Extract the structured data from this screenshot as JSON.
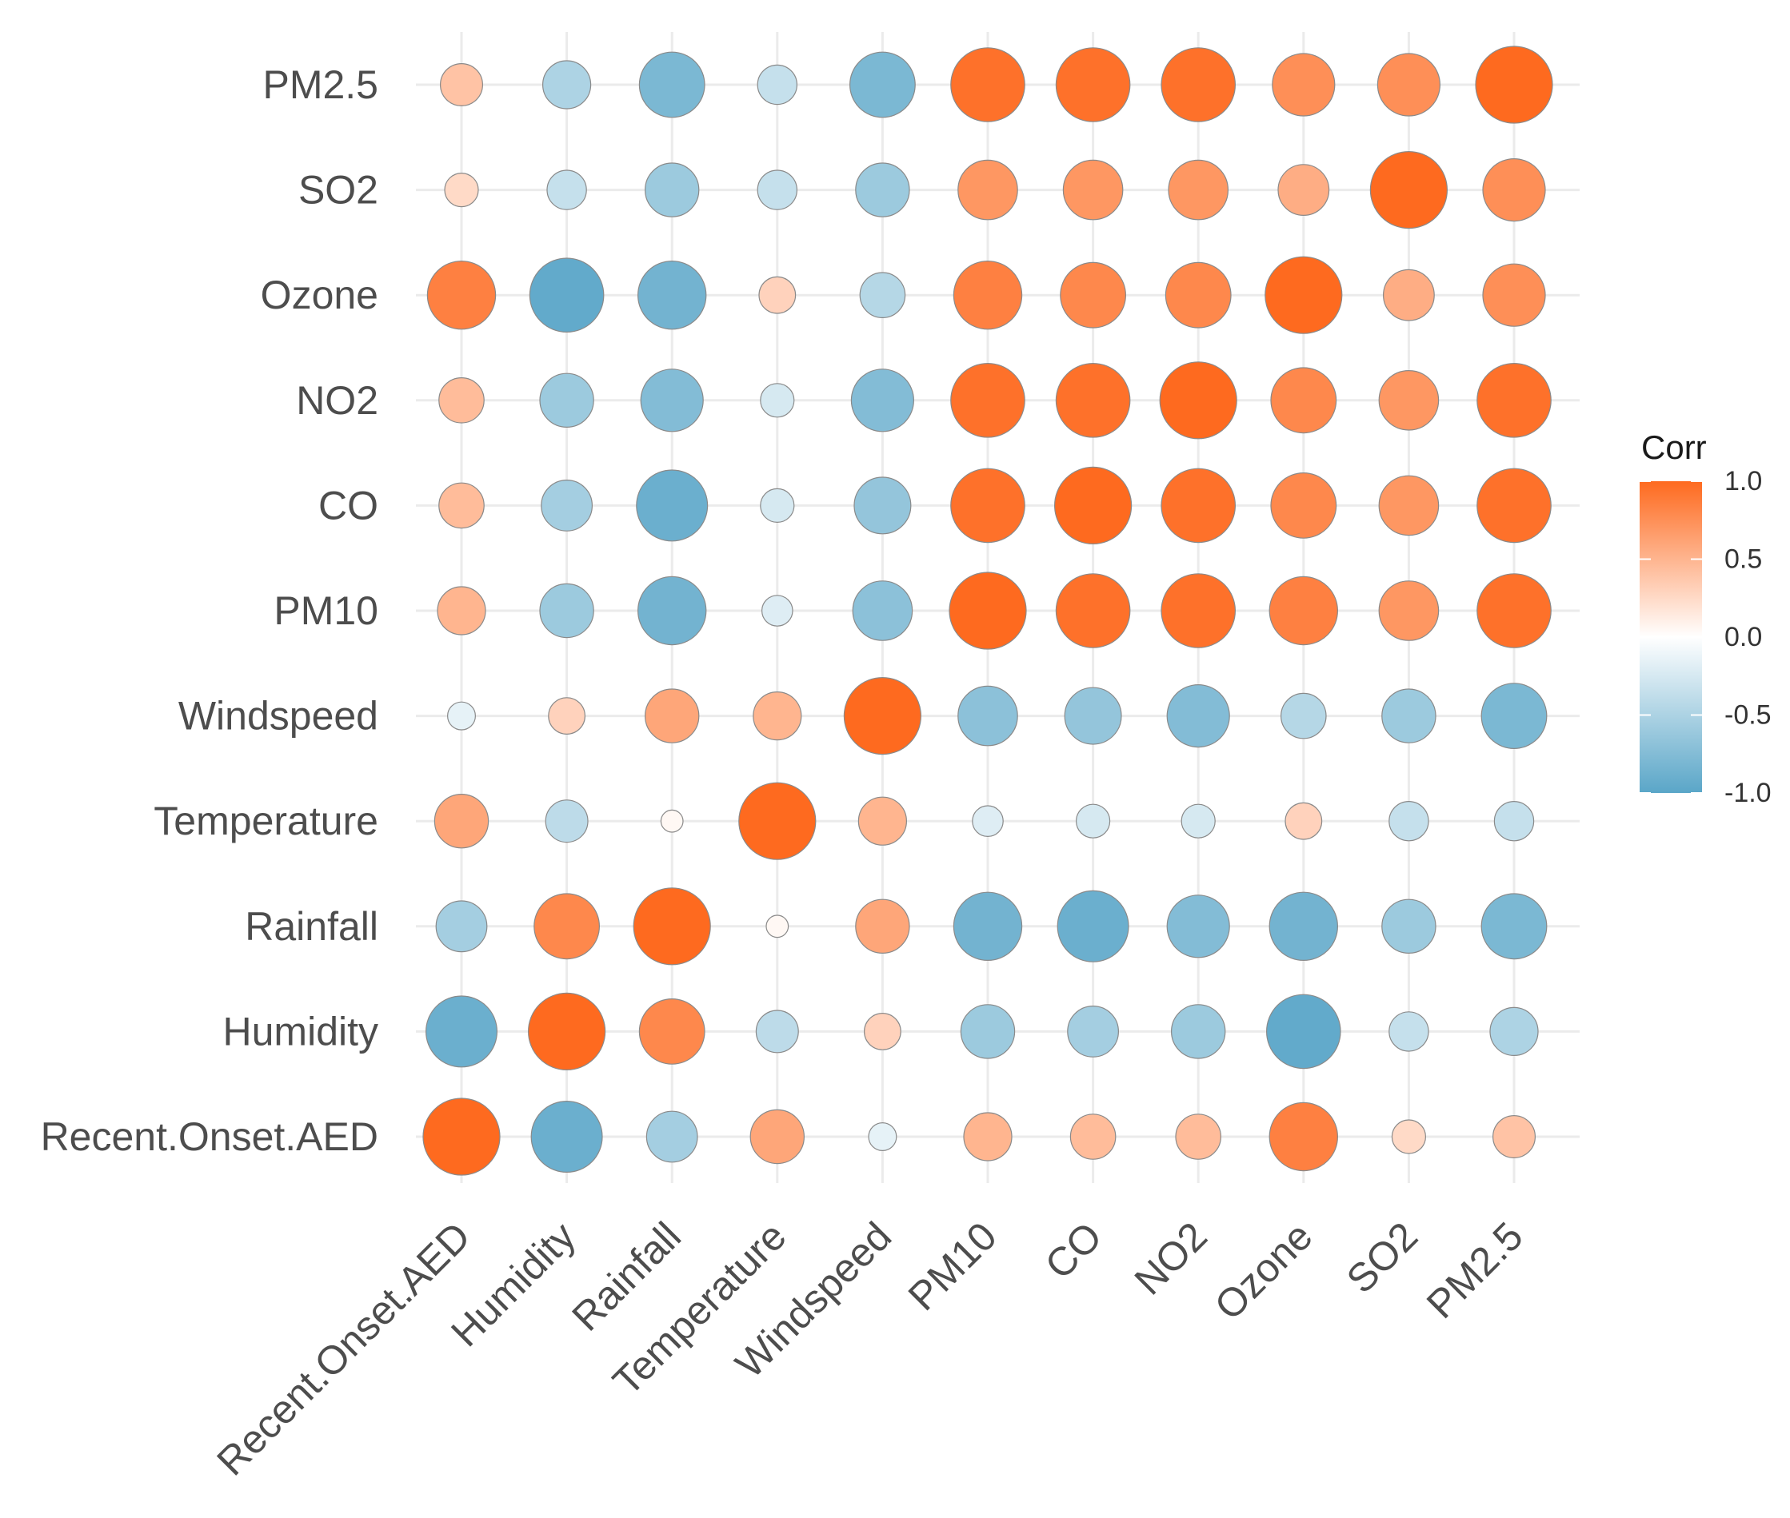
{
  "chart_data": {
    "type": "heatmap",
    "subtype": "correlation-circle-matrix",
    "variables": [
      "Recent.Onset.AED",
      "Humidity",
      "Rainfall",
      "Temperature",
      "Windspeed",
      "PM10",
      "CO",
      "NO2",
      "Ozone",
      "SO2",
      "PM2.5"
    ],
    "x_categories": [
      "Recent.Onset.AED",
      "Humidity",
      "Rainfall",
      "Temperature",
      "Windspeed",
      "PM10",
      "CO",
      "NO2",
      "Ozone",
      "SO2",
      "PM2.5"
    ],
    "y_categories_bottom_to_top": [
      "Recent.Onset.AED",
      "Humidity",
      "Rainfall",
      "Temperature",
      "Windspeed",
      "PM10",
      "CO",
      "NO2",
      "Ozone",
      "SO2",
      "PM2.5"
    ],
    "matrix": [
      [
        1.0,
        -0.9,
        -0.55,
        0.6,
        -0.15,
        0.5,
        0.45,
        0.45,
        0.85,
        0.25,
        0.4
      ],
      [
        -0.9,
        1.0,
        0.8,
        -0.4,
        0.3,
        -0.6,
        -0.55,
        -0.6,
        -0.95,
        -0.35,
        -0.5
      ],
      [
        -0.55,
        0.8,
        1.0,
        0.05,
        0.6,
        -0.85,
        -0.9,
        -0.75,
        -0.85,
        -0.6,
        -0.8
      ],
      [
        0.6,
        -0.4,
        0.05,
        1.0,
        0.5,
        -0.2,
        -0.25,
        -0.25,
        0.3,
        -0.35,
        -0.35
      ],
      [
        -0.15,
        0.3,
        0.6,
        0.5,
        1.0,
        -0.7,
        -0.65,
        -0.75,
        -0.45,
        -0.6,
        -0.8
      ],
      [
        0.5,
        -0.6,
        -0.85,
        -0.2,
        -0.7,
        1.0,
        0.95,
        0.95,
        0.85,
        0.7,
        0.95
      ],
      [
        0.45,
        -0.55,
        -0.9,
        -0.25,
        -0.65,
        0.95,
        1.0,
        0.95,
        0.8,
        0.7,
        0.95
      ],
      [
        0.45,
        -0.6,
        -0.75,
        -0.25,
        -0.75,
        0.95,
        0.95,
        1.0,
        0.8,
        0.7,
        0.95
      ],
      [
        0.85,
        -0.95,
        -0.85,
        0.3,
        -0.45,
        0.85,
        0.8,
        0.8,
        1.0,
        0.55,
        0.75
      ],
      [
        0.25,
        -0.35,
        -0.6,
        -0.35,
        -0.6,
        0.7,
        0.7,
        0.7,
        0.55,
        1.0,
        0.75
      ],
      [
        0.4,
        -0.5,
        -0.8,
        -0.35,
        -0.8,
        0.95,
        0.95,
        0.95,
        0.75,
        0.75,
        1.0
      ]
    ],
    "color_scale": {
      "low": "#5aa6c8",
      "mid": "#ffffff",
      "high": "#fe6a1f",
      "domain": [
        -1.0,
        0.0,
        1.0
      ]
    },
    "legend": {
      "title": "Corr",
      "ticks": [
        1.0,
        0.5,
        0.0,
        -0.5,
        -1.0
      ],
      "tick_labels": [
        "1.0",
        "0.5",
        "0.0",
        "-0.5",
        "-1.0"
      ],
      "placement": "right"
    },
    "title": "",
    "xlabel": "",
    "ylabel": "",
    "grid": true
  }
}
